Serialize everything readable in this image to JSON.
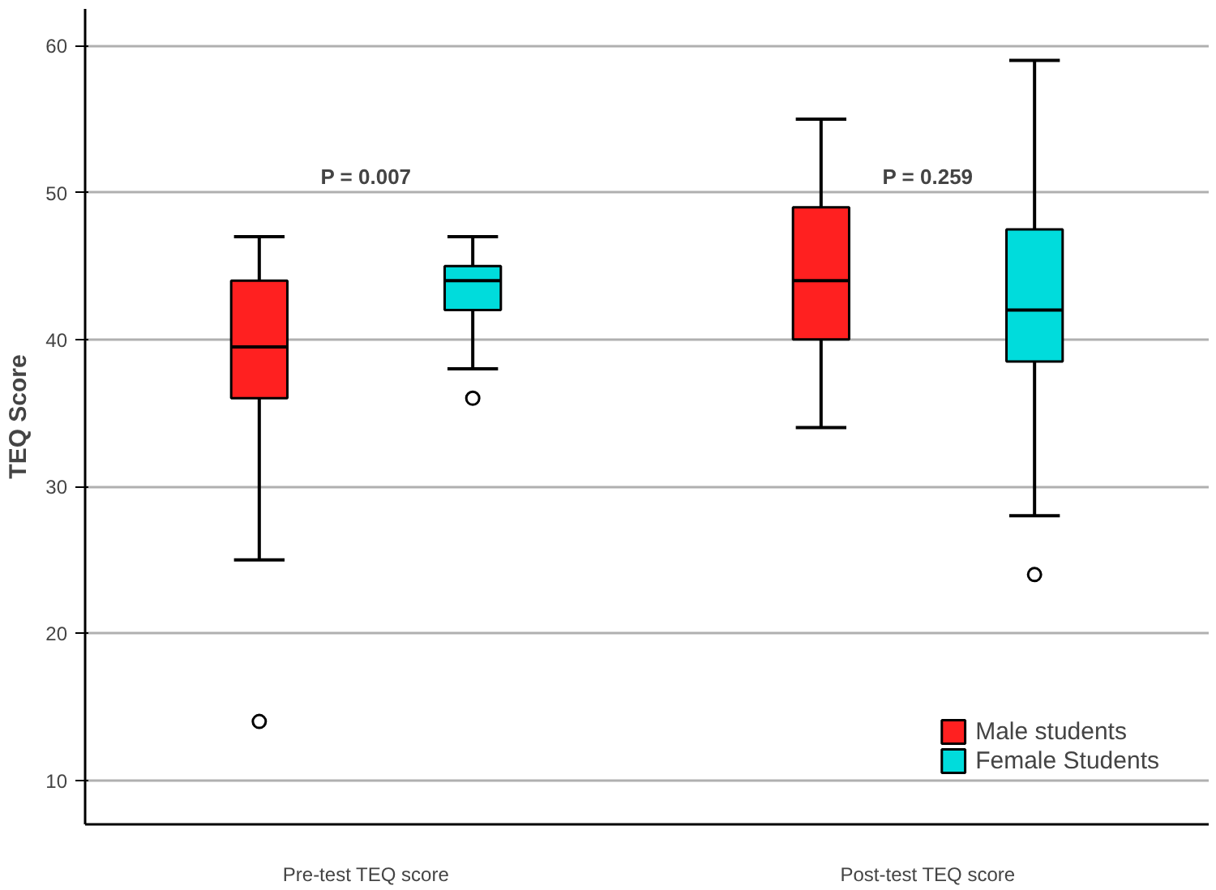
{
  "chart_data": {
    "type": "box",
    "ylabel": "TEQ Score",
    "categories": [
      "Pre-test TEQ score",
      "Post-test TEQ score"
    ],
    "series": [
      {
        "name": "Male students",
        "color": "#ff2020",
        "boxes": [
          {
            "low": 25,
            "q1": 36,
            "median": 39.5,
            "q3": 44,
            "high": 47,
            "outliers": [
              14
            ]
          },
          {
            "low": 34,
            "q1": 40,
            "median": 44,
            "q3": 49,
            "high": 55
          }
        ]
      },
      {
        "name": "Female Students",
        "color": "#00dcdc",
        "boxes": [
          {
            "low": 38,
            "q1": 42,
            "median": 44,
            "q3": 45,
            "high": 47,
            "outliers": [
              36
            ]
          },
          {
            "low": 28,
            "q1": 38.5,
            "median": 42,
            "q3": 47.5,
            "high": 59,
            "outliers": [
              24
            ]
          }
        ]
      }
    ],
    "ylim": [
      7,
      62.5
    ],
    "yticks": [
      10,
      20,
      30,
      40,
      50,
      60
    ],
    "grid": "y",
    "legend": "bottom right",
    "annotations": [
      "P = 0.007",
      "P = 0.259"
    ]
  }
}
